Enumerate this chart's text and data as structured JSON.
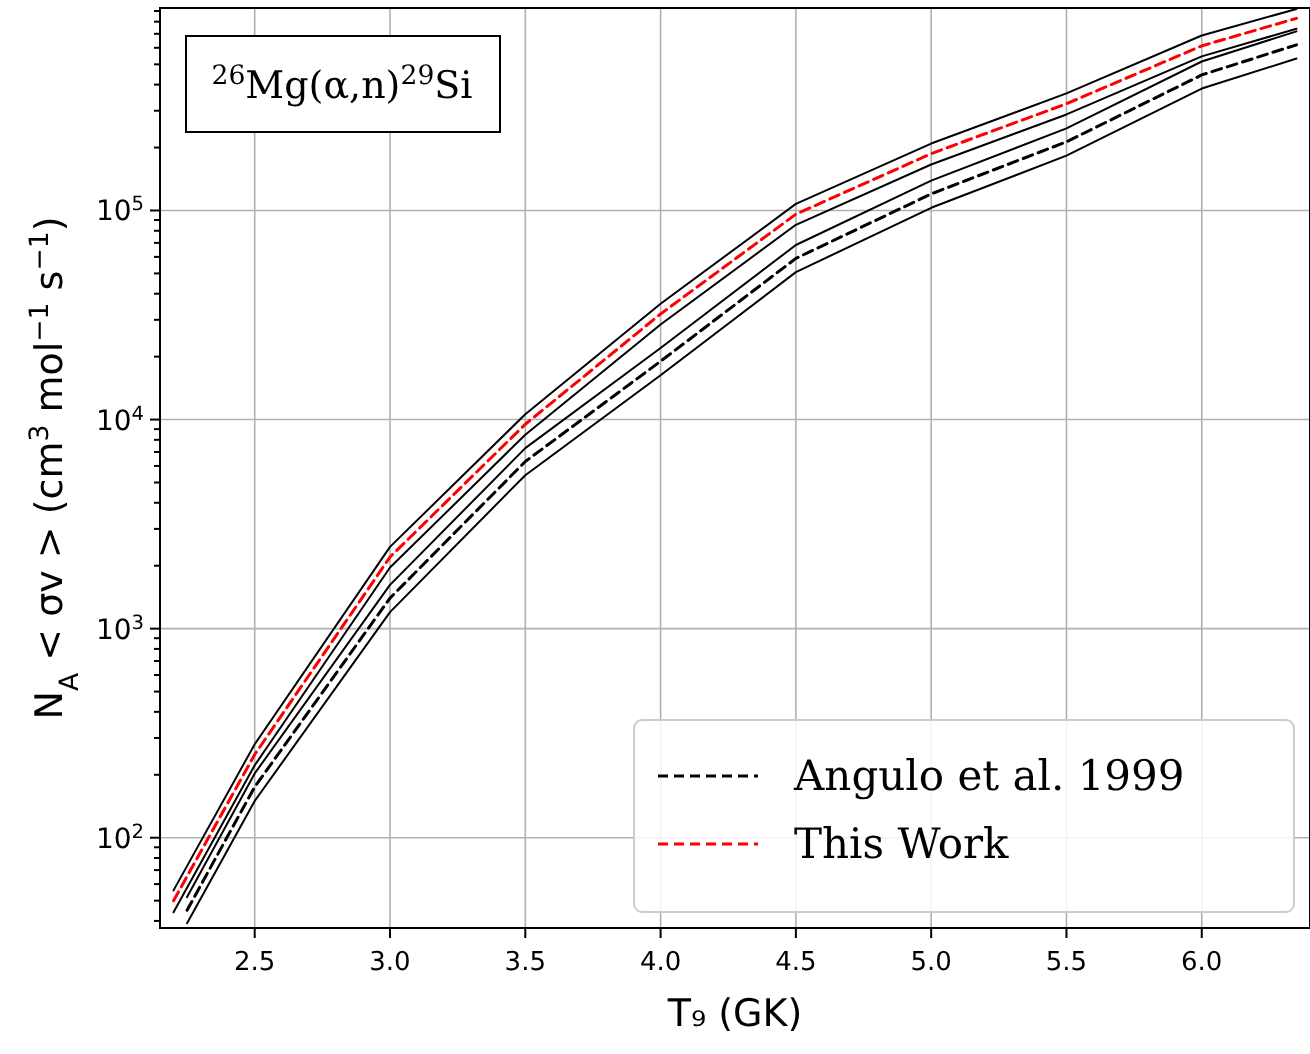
{
  "chart_data": {
    "type": "line",
    "xlabel": "T₉ (GK)",
    "ylabel": "N$_{A}$ < σv > (cm$^{3}$ mol$^{−1}$ s$^{−1}$)",
    "annotations": [
      "$^{26}$Mg(α,n)$^{29}$Si"
    ],
    "log": "y",
    "grid": true,
    "legend": "bottom right",
    "line_style": "dashed",
    "xlim": [
      2.15,
      6.4
    ],
    "ylim": [
      37,
      930000
    ],
    "xticks": [
      {
        "value": 2.5,
        "label": "2.5"
      },
      {
        "value": 3,
        "label": "3.0"
      },
      {
        "value": 3.5,
        "label": "3.5"
      },
      {
        "value": 4,
        "label": "4.0"
      },
      {
        "value": 4.5,
        "label": "4.5"
      },
      {
        "value": 5,
        "label": "5.0"
      },
      {
        "value": 5.5,
        "label": "5.5"
      },
      {
        "value": 6,
        "label": "6.0"
      }
    ],
    "yticks": [
      {
        "value": 100,
        "label": "10$^{2}$"
      },
      {
        "value": 1000,
        "label": "10$^{3}$"
      },
      {
        "value": 10000,
        "label": "10$^{4}$"
      },
      {
        "value": 100000,
        "label": "10$^{5}$"
      },
      {
        "value": 40,
        "label": null
      },
      {
        "value": 50,
        "label": null
      },
      {
        "value": 60,
        "label": null
      },
      {
        "value": 70,
        "label": null
      },
      {
        "value": 80,
        "label": null
      },
      {
        "value": 90,
        "label": null
      },
      {
        "value": 200,
        "label": null
      },
      {
        "value": 300,
        "label": null
      },
      {
        "value": 400,
        "label": null
      },
      {
        "value": 500,
        "label": null
      },
      {
        "value": 600,
        "label": null
      },
      {
        "value": 700,
        "label": null
      },
      {
        "value": 800,
        "label": null
      },
      {
        "value": 900,
        "label": null
      },
      {
        "value": 2000,
        "label": null
      },
      {
        "value": 3000,
        "label": null
      },
      {
        "value": 4000,
        "label": null
      },
      {
        "value": 5000,
        "label": null
      },
      {
        "value": 6000,
        "label": null
      },
      {
        "value": 7000,
        "label": null
      },
      {
        "value": 8000,
        "label": null
      },
      {
        "value": 9000,
        "label": null
      },
      {
        "value": 20000,
        "label": null
      },
      {
        "value": 30000,
        "label": null
      },
      {
        "value": 40000,
        "label": null
      },
      {
        "value": 50000,
        "label": null
      },
      {
        "value": 60000,
        "label": null
      },
      {
        "value": 70000,
        "label": null
      },
      {
        "value": 80000,
        "label": null
      },
      {
        "value": 90000,
        "label": null
      },
      {
        "value": 200000,
        "label": null
      },
      {
        "value": 300000,
        "label": null
      },
      {
        "value": 400000,
        "label": null
      },
      {
        "value": 500000,
        "label": null
      },
      {
        "value": 600000,
        "label": null
      },
      {
        "value": 700000,
        "label": null
      },
      {
        "value": 800000,
        "label": null
      },
      {
        "value": 900000,
        "label": null
      }
    ],
    "series": [
      {
        "name": "Angulo et al. 1999",
        "color": "#000000",
        "x": [
          2.25,
          2.5,
          3.0,
          3.5,
          4.0,
          4.5,
          5.0,
          5.5,
          6.0,
          6.35
        ],
        "values": [
          45,
          175,
          1400,
          6300,
          19000,
          59000,
          120000,
          213000,
          445000,
          620000
        ]
      },
      {
        "color": "#000000",
        "line_style": "solid",
        "x": [
          2.25,
          2.5,
          3.0,
          3.5,
          4.0,
          4.5,
          5.0,
          5.5,
          6.0,
          6.35
        ],
        "values": [
          39,
          150,
          1200,
          5420,
          16300,
          50700,
          103000,
          183000,
          383000,
          533000
        ]
      },
      {
        "color": "#000000",
        "line_style": "solid",
        "x": [
          2.25,
          2.5,
          3.0,
          3.5,
          4.0,
          4.5,
          5.0,
          5.5,
          6.0,
          6.35
        ],
        "values": [
          52,
          203,
          1620,
          7300,
          22000,
          68400,
          139000,
          247000,
          516000,
          719000
        ]
      },
      {
        "name": "This Work",
        "color": "#ff0000",
        "x": [
          2.2,
          2.5,
          3.0,
          3.5,
          4.0,
          4.5,
          5.0,
          5.5,
          6.0,
          6.35
        ],
        "values": [
          50,
          250,
          2200,
          9500,
          32000,
          96000,
          187000,
          324000,
          613000,
          830000
        ]
      },
      {
        "color": "#000000",
        "line_style": "solid",
        "x": [
          2.2,
          2.5,
          3.0,
          3.5,
          4.0,
          4.5,
          5.0,
          5.5,
          6.0,
          6.35
        ],
        "values": [
          44,
          222,
          1960,
          8460,
          28500,
          85400,
          166000,
          288000,
          546000,
          740000
        ]
      },
      {
        "color": "#000000",
        "line_style": "solid",
        "x": [
          2.2,
          2.5,
          3.0,
          3.5,
          4.0,
          4.5,
          5.0,
          5.5,
          6.0,
          6.35
        ],
        "values": [
          56,
          280,
          2460,
          10600,
          35800,
          107500,
          209000,
          363000,
          687000,
          920000
        ]
      }
    ]
  }
}
